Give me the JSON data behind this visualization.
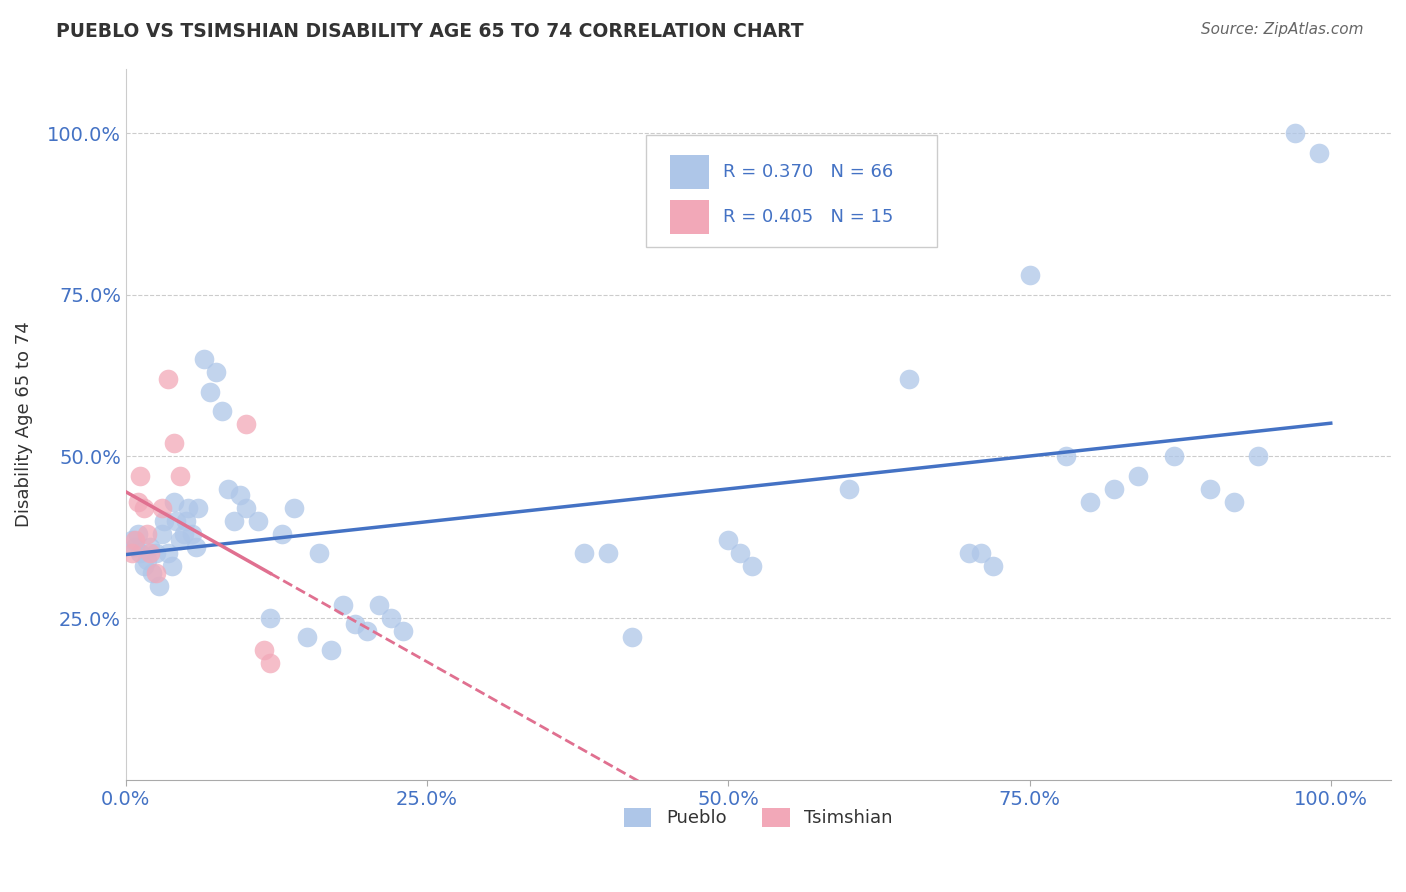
{
  "title": "PUEBLO VS TSIMSHIAN DISABILITY AGE 65 TO 74 CORRELATION CHART",
  "source": "Source: ZipAtlas.com",
  "ylabel_label": "Disability Age 65 to 74",
  "x_tick_labels": [
    "0.0%",
    "25.0%",
    "50.0%",
    "75.0%",
    "100.0%"
  ],
  "x_tick_vals": [
    0.0,
    0.25,
    0.5,
    0.75,
    1.0
  ],
  "y_tick_labels": [
    "25.0%",
    "50.0%",
    "75.0%",
    "100.0%"
  ],
  "y_tick_vals": [
    0.25,
    0.5,
    0.75,
    1.0
  ],
  "pueblo_color": "#aec6e8",
  "tsimshian_color": "#f2a8b8",
  "pueblo_line_color": "#4472c4",
  "tsimshian_line_color": "#e07090",
  "pueblo_R": 0.37,
  "pueblo_N": 66,
  "tsimshian_R": 0.405,
  "tsimshian_N": 15,
  "legend_color": "#4472c4",
  "pueblo_x": [
    0.005,
    0.008,
    0.01,
    0.012,
    0.015,
    0.018,
    0.02,
    0.022,
    0.025,
    0.028,
    0.03,
    0.032,
    0.035,
    0.038,
    0.04,
    0.042,
    0.045,
    0.048,
    0.05,
    0.052,
    0.055,
    0.058,
    0.06,
    0.065,
    0.07,
    0.075,
    0.08,
    0.085,
    0.09,
    0.095,
    0.1,
    0.11,
    0.12,
    0.13,
    0.14,
    0.15,
    0.16,
    0.17,
    0.18,
    0.19,
    0.2,
    0.21,
    0.22,
    0.23,
    0.38,
    0.4,
    0.42,
    0.5,
    0.51,
    0.52,
    0.6,
    0.65,
    0.7,
    0.71,
    0.72,
    0.75,
    0.78,
    0.8,
    0.82,
    0.84,
    0.87,
    0.9,
    0.92,
    0.94,
    0.97,
    0.99
  ],
  "pueblo_y": [
    0.37,
    0.36,
    0.38,
    0.35,
    0.33,
    0.34,
    0.36,
    0.32,
    0.35,
    0.3,
    0.38,
    0.4,
    0.35,
    0.33,
    0.43,
    0.4,
    0.37,
    0.38,
    0.4,
    0.42,
    0.38,
    0.36,
    0.42,
    0.65,
    0.6,
    0.63,
    0.57,
    0.45,
    0.4,
    0.44,
    0.42,
    0.4,
    0.25,
    0.38,
    0.42,
    0.22,
    0.35,
    0.2,
    0.27,
    0.24,
    0.23,
    0.27,
    0.25,
    0.23,
    0.35,
    0.35,
    0.22,
    0.37,
    0.35,
    0.33,
    0.45,
    0.62,
    0.35,
    0.35,
    0.33,
    0.78,
    0.5,
    0.43,
    0.45,
    0.47,
    0.5,
    0.45,
    0.43,
    0.5,
    1.0,
    0.97
  ],
  "tsimshian_x": [
    0.005,
    0.008,
    0.01,
    0.012,
    0.015,
    0.018,
    0.02,
    0.025,
    0.03,
    0.035,
    0.04,
    0.045,
    0.1,
    0.115,
    0.12
  ],
  "tsimshian_y": [
    0.35,
    0.37,
    0.43,
    0.47,
    0.42,
    0.38,
    0.35,
    0.32,
    0.42,
    0.62,
    0.52,
    0.47,
    0.55,
    0.2,
    0.18
  ],
  "background_color": "#ffffff",
  "grid_color": "#cccccc",
  "xlim": [
    0.0,
    1.05
  ],
  "ylim": [
    0.0,
    1.1
  ]
}
